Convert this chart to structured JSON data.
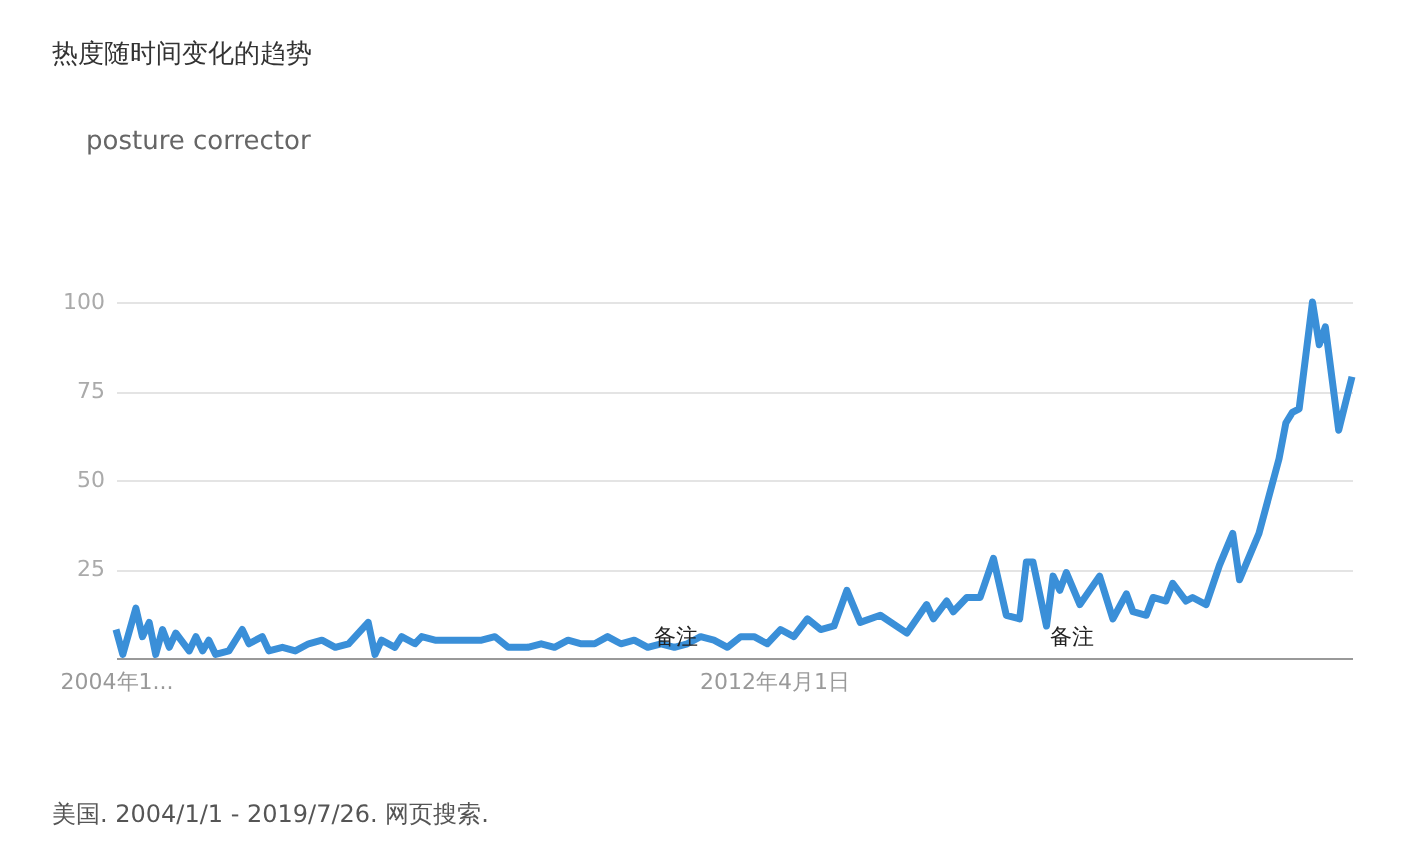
{
  "chart_data": {
    "type": "line",
    "title": "热度随时间变化的趋势",
    "series": [
      {
        "name": "posture corrector",
        "color": "#3a8fd8",
        "x": [
          "2004-01",
          "2004-02",
          "2004-04",
          "2004-05",
          "2004-06",
          "2004-07",
          "2004-08",
          "2004-09",
          "2004-10",
          "2004-12",
          "2005-01",
          "2005-02",
          "2005-03",
          "2005-04",
          "2005-06",
          "2005-08",
          "2005-09",
          "2005-11",
          "2005-12",
          "2006-02",
          "2006-04",
          "2006-06",
          "2006-08",
          "2006-10",
          "2006-12",
          "2007-03",
          "2007-04",
          "2007-05",
          "2007-07",
          "2007-08",
          "2007-10",
          "2007-11",
          "2008-01",
          "2008-08",
          "2008-10",
          "2008-12",
          "2009-03",
          "2009-05",
          "2009-07",
          "2009-09",
          "2009-11",
          "2010-01",
          "2010-03",
          "2010-05",
          "2010-07",
          "2010-09",
          "2010-11",
          "2011-01",
          "2011-03",
          "2011-05",
          "2011-07",
          "2011-09",
          "2011-11",
          "2012-01",
          "2012-03",
          "2012-05",
          "2012-07",
          "2012-09",
          "2012-11",
          "2013-01",
          "2013-03",
          "2013-05",
          "2013-08",
          "2013-12",
          "2014-03",
          "2014-04",
          "2014-06",
          "2014-07",
          "2014-09",
          "2014-11",
          "2015-01",
          "2015-03",
          "2015-05",
          "2015-06",
          "2015-07",
          "2015-09",
          "2015-10",
          "2015-11",
          "2015-12",
          "2016-02",
          "2016-05",
          "2016-07",
          "2016-09",
          "2016-10",
          "2016-12",
          "2017-01",
          "2017-03",
          "2017-04",
          "2017-06",
          "2017-07",
          "2017-09",
          "2017-11",
          "2018-01",
          "2018-02",
          "2018-05",
          "2018-08",
          "2018-09",
          "2018-10",
          "2018-11",
          "2019-01",
          "2019-02",
          "2019-03",
          "2019-05",
          "2019-07"
        ],
        "values": [
          8,
          1,
          14,
          6,
          10,
          1,
          8,
          3,
          7,
          2,
          6,
          2,
          5,
          1,
          2,
          8,
          4,
          6,
          2,
          3,
          2,
          4,
          5,
          3,
          4,
          10,
          1,
          5,
          3,
          6,
          4,
          6,
          5,
          5,
          6,
          3,
          3,
          4,
          3,
          5,
          4,
          4,
          6,
          4,
          5,
          3,
          4,
          3,
          4,
          6,
          5,
          3,
          6,
          6,
          4,
          8,
          6,
          11,
          8,
          9,
          19,
          10,
          12,
          7,
          15,
          11,
          16,
          13,
          17,
          17,
          28,
          12,
          11,
          27,
          27,
          9,
          23,
          19,
          24,
          15,
          23,
          11,
          18,
          13,
          12,
          17,
          16,
          21,
          16,
          17,
          15,
          26,
          35,
          22,
          35,
          56,
          66,
          69,
          70,
          100,
          88,
          93,
          64,
          79
        ]
      }
    ],
    "xlim": [
      "2004-01",
      "2019-07"
    ],
    "xticks": [
      {
        "value": "2004-01",
        "label": "2004年1..."
      },
      {
        "value": "2012-04",
        "label": "2012年4月1日"
      }
    ],
    "ylim": [
      0,
      100
    ],
    "yticks": [
      25,
      50,
      75,
      100
    ],
    "grid": "y",
    "legend": "top left",
    "annotations": [
      "备注",
      "备注",
      "美国. 2004/1/1 - 2019/7/26. 网页搜索."
    ]
  }
}
